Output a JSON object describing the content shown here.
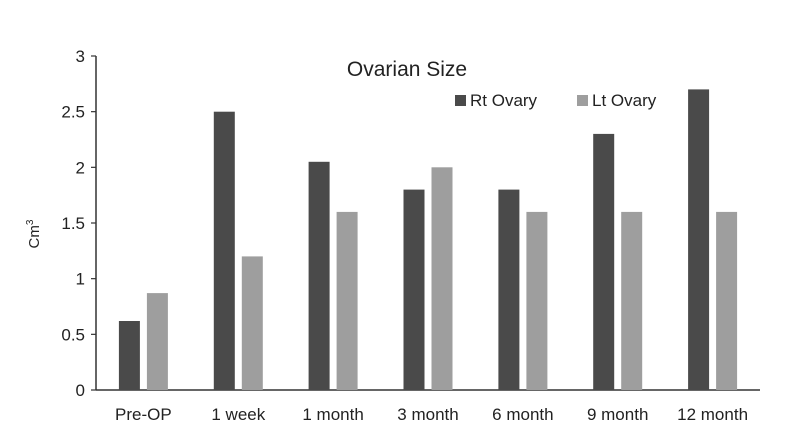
{
  "chart_data": {
    "type": "bar",
    "title": "Ovarian Size",
    "xlabel": "",
    "ylabel": "Cm",
    "ylabel_superscript": "3",
    "ylim": [
      0,
      3
    ],
    "yticks": [
      "0",
      "0.5",
      "1",
      "1.5",
      "2",
      "2.5",
      "3"
    ],
    "categories": [
      "Pre-OP",
      "1 week",
      "1 month",
      "3 month",
      "6 month",
      "9 month",
      "12 month"
    ],
    "series": [
      {
        "name": "Rt Ovary",
        "color": "#4a4a4a",
        "values": [
          0.62,
          2.5,
          2.05,
          1.8,
          1.8,
          2.3,
          2.7
        ]
      },
      {
        "name": "Lt Ovary",
        "color": "#9e9e9e",
        "values": [
          0.87,
          1.2,
          1.6,
          2.0,
          1.6,
          1.6,
          1.6
        ]
      }
    ],
    "grid": false,
    "legend_position": "top-right"
  }
}
